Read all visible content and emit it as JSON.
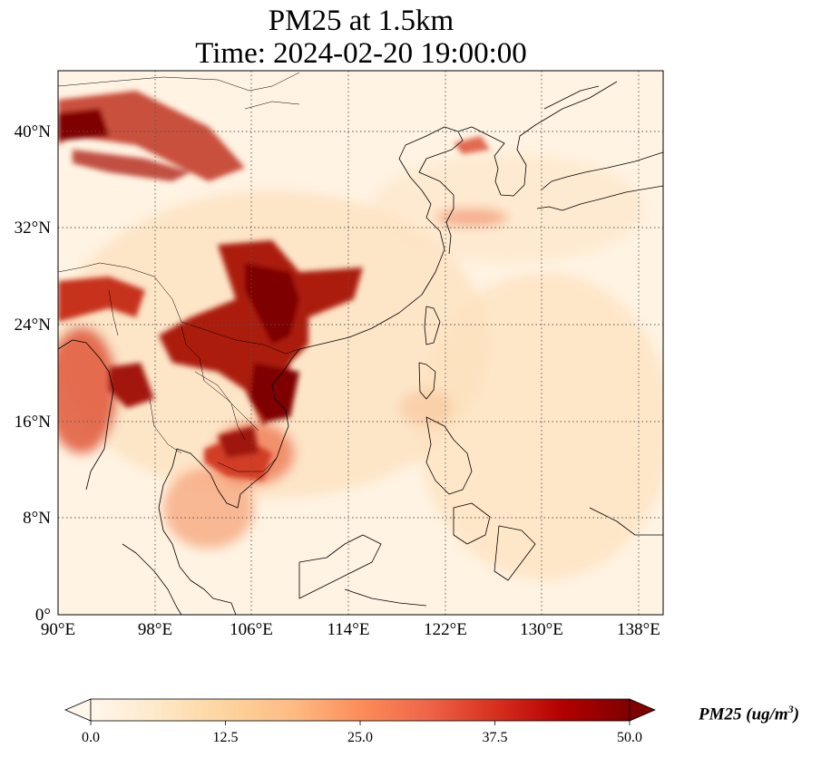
{
  "title": {
    "line1": "PM25 at 1.5km",
    "line2": "Time: 2024-02-20 19:00:00"
  },
  "map": {
    "projection": "PlateCarree",
    "lon_range": [
      90,
      140
    ],
    "lat_range": [
      0,
      45
    ],
    "gridlines": "dotted",
    "lon_ticks": [
      {
        "value": 90,
        "label": "90°E"
      },
      {
        "value": 98,
        "label": "98°E"
      },
      {
        "value": 106,
        "label": "106°E"
      },
      {
        "value": 114,
        "label": "114°E"
      },
      {
        "value": 122,
        "label": "122°E"
      },
      {
        "value": 130,
        "label": "130°E"
      },
      {
        "value": 138,
        "label": "138°E"
      }
    ],
    "lat_ticks": [
      {
        "value": 0,
        "label": "0°"
      },
      {
        "value": 8,
        "label": "8°N"
      },
      {
        "value": 16,
        "label": "16°N"
      },
      {
        "value": 24,
        "label": "24°N"
      },
      {
        "value": 32,
        "label": "32°N"
      },
      {
        "value": 40,
        "label": "40°N"
      }
    ]
  },
  "colorbar": {
    "colormap": "OrRd",
    "min": 0.0,
    "max": 50.0,
    "extend": "both",
    "ticks": [
      "0.0",
      "12.5",
      "25.0",
      "37.5",
      "50.0"
    ],
    "label_main": "PM25 (ug/m",
    "label_sup": "3",
    "label_end": ")"
  }
}
